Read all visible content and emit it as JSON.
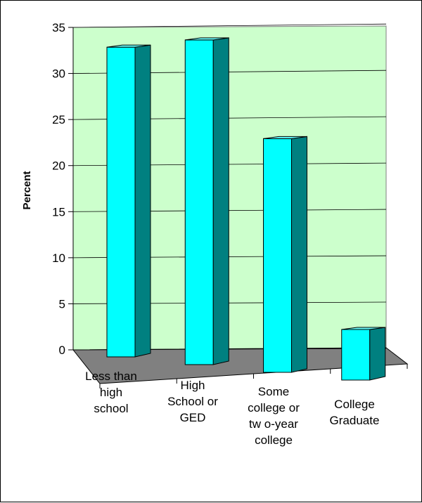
{
  "chart_data": {
    "type": "bar",
    "title": "",
    "xlabel": "",
    "ylabel": "Percent",
    "ylim": [
      0,
      35
    ],
    "yticks": [
      0,
      5,
      10,
      15,
      20,
      25,
      30,
      35
    ],
    "categories": [
      [
        "Less than",
        "high",
        "school"
      ],
      [
        "High",
        "School or",
        "GED"
      ],
      [
        "Some",
        "college or",
        "tw o-year",
        "college"
      ],
      [
        "College",
        "Graduate"
      ]
    ],
    "values": [
      33.5,
      35,
      25,
      5
    ],
    "grid": true,
    "three_d": true,
    "colors": {
      "wall": "#ccffcc",
      "floor": "#808080",
      "bar_front": "#00ffff",
      "bar_side": "#008080",
      "bar_top": "#66ffff",
      "grid": "#000000"
    }
  }
}
